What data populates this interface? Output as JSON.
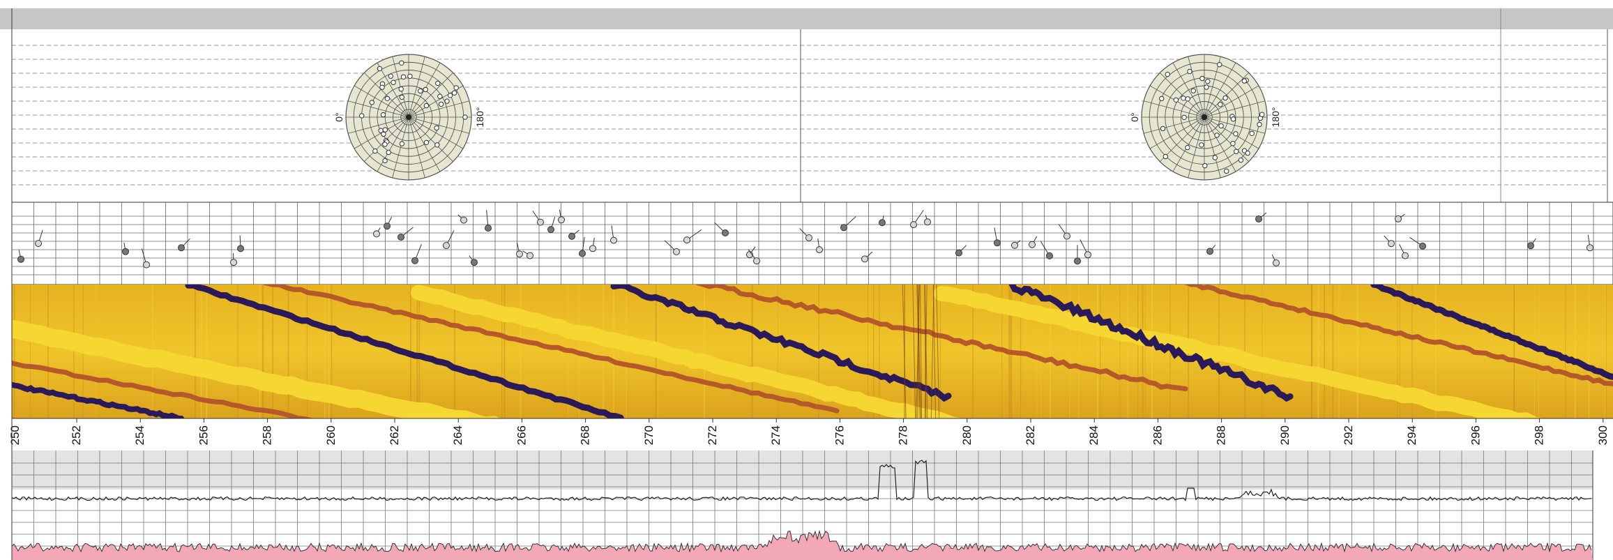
{
  "window": {
    "frame_color": "#c7c7c7"
  },
  "stereonets": [
    {
      "left_label": "0°",
      "right_label": "180°",
      "rim_color": "#e7e6d0",
      "ring_count": 7,
      "spoke_count": 24
    },
    {
      "left_label": "0°",
      "right_label": "180°",
      "rim_color": "#e7e6d0",
      "ring_count": 7,
      "spoke_count": 24
    }
  ],
  "image_track": {
    "colors": {
      "base": "#e6b11f",
      "light": "#f6d630",
      "dark_trace": "#2b1a5a",
      "brown_trace": "#b5582a"
    }
  },
  "depth_track": {
    "unit": "",
    "first_partial_label": "250",
    "labels": [
      "252",
      "254",
      "256",
      "258",
      "260",
      "262",
      "264",
      "266",
      "268",
      "270",
      "272",
      "274",
      "276",
      "278",
      "280",
      "282",
      "284",
      "286",
      "288",
      "290",
      "292",
      "294",
      "296",
      "298",
      "300"
    ]
  },
  "curve_track": {
    "upper_fill": "#e3e3e3",
    "lower_fill": "#f3a8b8",
    "line_color": "#222222"
  }
}
